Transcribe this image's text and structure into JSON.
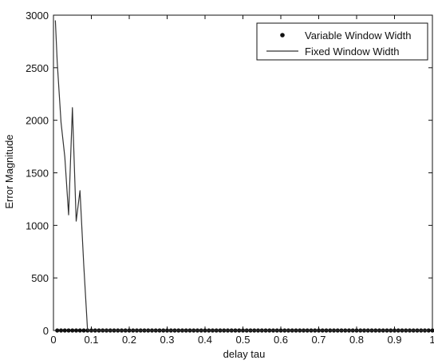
{
  "chart_data": {
    "type": "line",
    "xlabel": "delay tau",
    "ylabel": "Error Magnitude",
    "xlim": [
      0,
      1
    ],
    "ylim": [
      0,
      3000
    ],
    "x_ticks": [
      0,
      0.1,
      0.2,
      0.3,
      0.4,
      0.5,
      0.6,
      0.7,
      0.8,
      0.9,
      1
    ],
    "x_tick_labels": [
      "0",
      "0.1",
      "0.2",
      "0.3",
      "0.4",
      "0.5",
      "0.6",
      "0.7",
      "0.8",
      "0.9",
      "1"
    ],
    "y_ticks": [
      0,
      500,
      1000,
      1500,
      2000,
      2500,
      3000
    ],
    "y_tick_labels": [
      "0",
      "500",
      "1000",
      "1500",
      "2000",
      "2500",
      "3000"
    ],
    "grid": false,
    "legend_position": "top-right",
    "series": [
      {
        "name": "Variable Window Width",
        "style": "markers",
        "marker": "filled-circle",
        "color": "#111111",
        "x": [
          0.01,
          0.02,
          0.03,
          0.04,
          0.05,
          0.06,
          0.07,
          0.08,
          0.09,
          0.1,
          0.11,
          0.12,
          0.13,
          0.14,
          0.15,
          0.16,
          0.17,
          0.18,
          0.19,
          0.2,
          0.21,
          0.22,
          0.23,
          0.24,
          0.25,
          0.26,
          0.27,
          0.28,
          0.29,
          0.3,
          0.31,
          0.32,
          0.33,
          0.34,
          0.35,
          0.36,
          0.37,
          0.38,
          0.39,
          0.4,
          0.41,
          0.42,
          0.43,
          0.44,
          0.45,
          0.46,
          0.47,
          0.48,
          0.49,
          0.5,
          0.51,
          0.52,
          0.53,
          0.54,
          0.55,
          0.56,
          0.57,
          0.58,
          0.59,
          0.6,
          0.61,
          0.62,
          0.63,
          0.64,
          0.65,
          0.66,
          0.67,
          0.68,
          0.69,
          0.7,
          0.71,
          0.72,
          0.73,
          0.74,
          0.75,
          0.76,
          0.77,
          0.78,
          0.79,
          0.8,
          0.81,
          0.82,
          0.83,
          0.84,
          0.85,
          0.86,
          0.87,
          0.88,
          0.89,
          0.9,
          0.91,
          0.92,
          0.93,
          0.94,
          0.95,
          0.96,
          0.97,
          0.98,
          0.99,
          1
        ],
        "y": [
          0,
          0,
          0,
          0,
          0,
          0,
          0,
          0,
          0,
          0,
          0,
          0,
          0,
          0,
          0,
          0,
          0,
          0,
          0,
          0,
          0,
          0,
          0,
          0,
          0,
          0,
          0,
          0,
          0,
          0,
          0,
          0,
          0,
          0,
          0,
          0,
          0,
          0,
          0,
          0,
          0,
          0,
          0,
          0,
          0,
          0,
          0,
          0,
          0,
          0,
          0,
          0,
          0,
          0,
          0,
          0,
          0,
          0,
          0,
          0,
          0,
          0,
          0,
          0,
          0,
          0,
          0,
          0,
          0,
          0,
          0,
          0,
          0,
          0,
          0,
          0,
          0,
          0,
          0,
          0,
          0,
          0,
          0,
          0,
          0,
          0,
          0,
          0,
          0,
          0,
          0,
          0,
          0,
          0,
          0,
          0,
          0,
          0,
          0,
          0
        ]
      },
      {
        "name": "Fixed Window Width",
        "style": "line",
        "color": "#333333",
        "x": [
          0.005,
          0.01,
          0.02,
          0.03,
          0.04,
          0.05,
          0.06,
          0.07,
          0.08,
          0.09,
          0.1,
          0.11,
          0.2,
          0.3,
          0.4,
          0.5,
          0.6,
          0.7,
          0.8,
          0.9,
          1
        ],
        "y": [
          2950,
          2550,
          1980,
          1650,
          1100,
          2120,
          1040,
          1330,
          620,
          0,
          0,
          0,
          0,
          0,
          0,
          0,
          0,
          0,
          0,
          0,
          0
        ]
      }
    ]
  }
}
